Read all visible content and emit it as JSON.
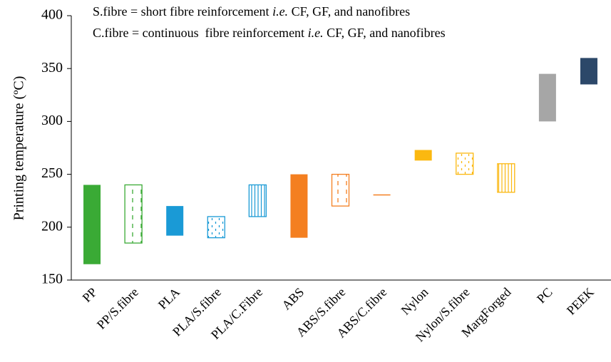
{
  "chart_data": {
    "type": "floating-bar",
    "y_label": "Printing temperature (ºC)",
    "annotations": [
      [
        "S.fibre = short fibre reinforcement ",
        "i.e.",
        " CF, GF, and nanofibres"
      ],
      [
        "C.fibre = continuous  fibre reinforcement ",
        "i.e.",
        " CF, GF, and nanofibres"
      ]
    ],
    "categories": [
      "PP",
      "PP/S.fibre",
      "PLA",
      "PLA/S.fibre",
      "PLA/C.Fibre",
      "ABS",
      "ABS/S.fibre",
      "ABS/C.fibre",
      "Nylon",
      "Nylon/S.fibre",
      "MargForged",
      "PC",
      "PEEK"
    ],
    "low": [
      165,
      185,
      192,
      190,
      210,
      190,
      220,
      230,
      263,
      250,
      233,
      300,
      335
    ],
    "high": [
      240,
      240,
      220,
      210,
      240,
      250,
      250,
      231,
      273,
      270,
      260,
      345,
      360
    ],
    "colors": [
      "#3aaa35",
      "#3aaa35",
      "#1a9ad6",
      "#1a9ad6",
      "#1a9ad6",
      "#f47f20",
      "#f47f20",
      "#f47f20",
      "#fbb810",
      "#fbb810",
      "#fbb810",
      "#a6a6a6",
      "#2c4869"
    ],
    "patterns": [
      "solid",
      "dashed",
      "solid",
      "dotted",
      "lines",
      "solid",
      "dashed",
      "solid",
      "solid",
      "dotted",
      "lines",
      "solid",
      "solid"
    ],
    "ylim": [
      150,
      400
    ],
    "yticks": [
      150,
      200,
      250,
      300,
      350,
      400
    ]
  }
}
